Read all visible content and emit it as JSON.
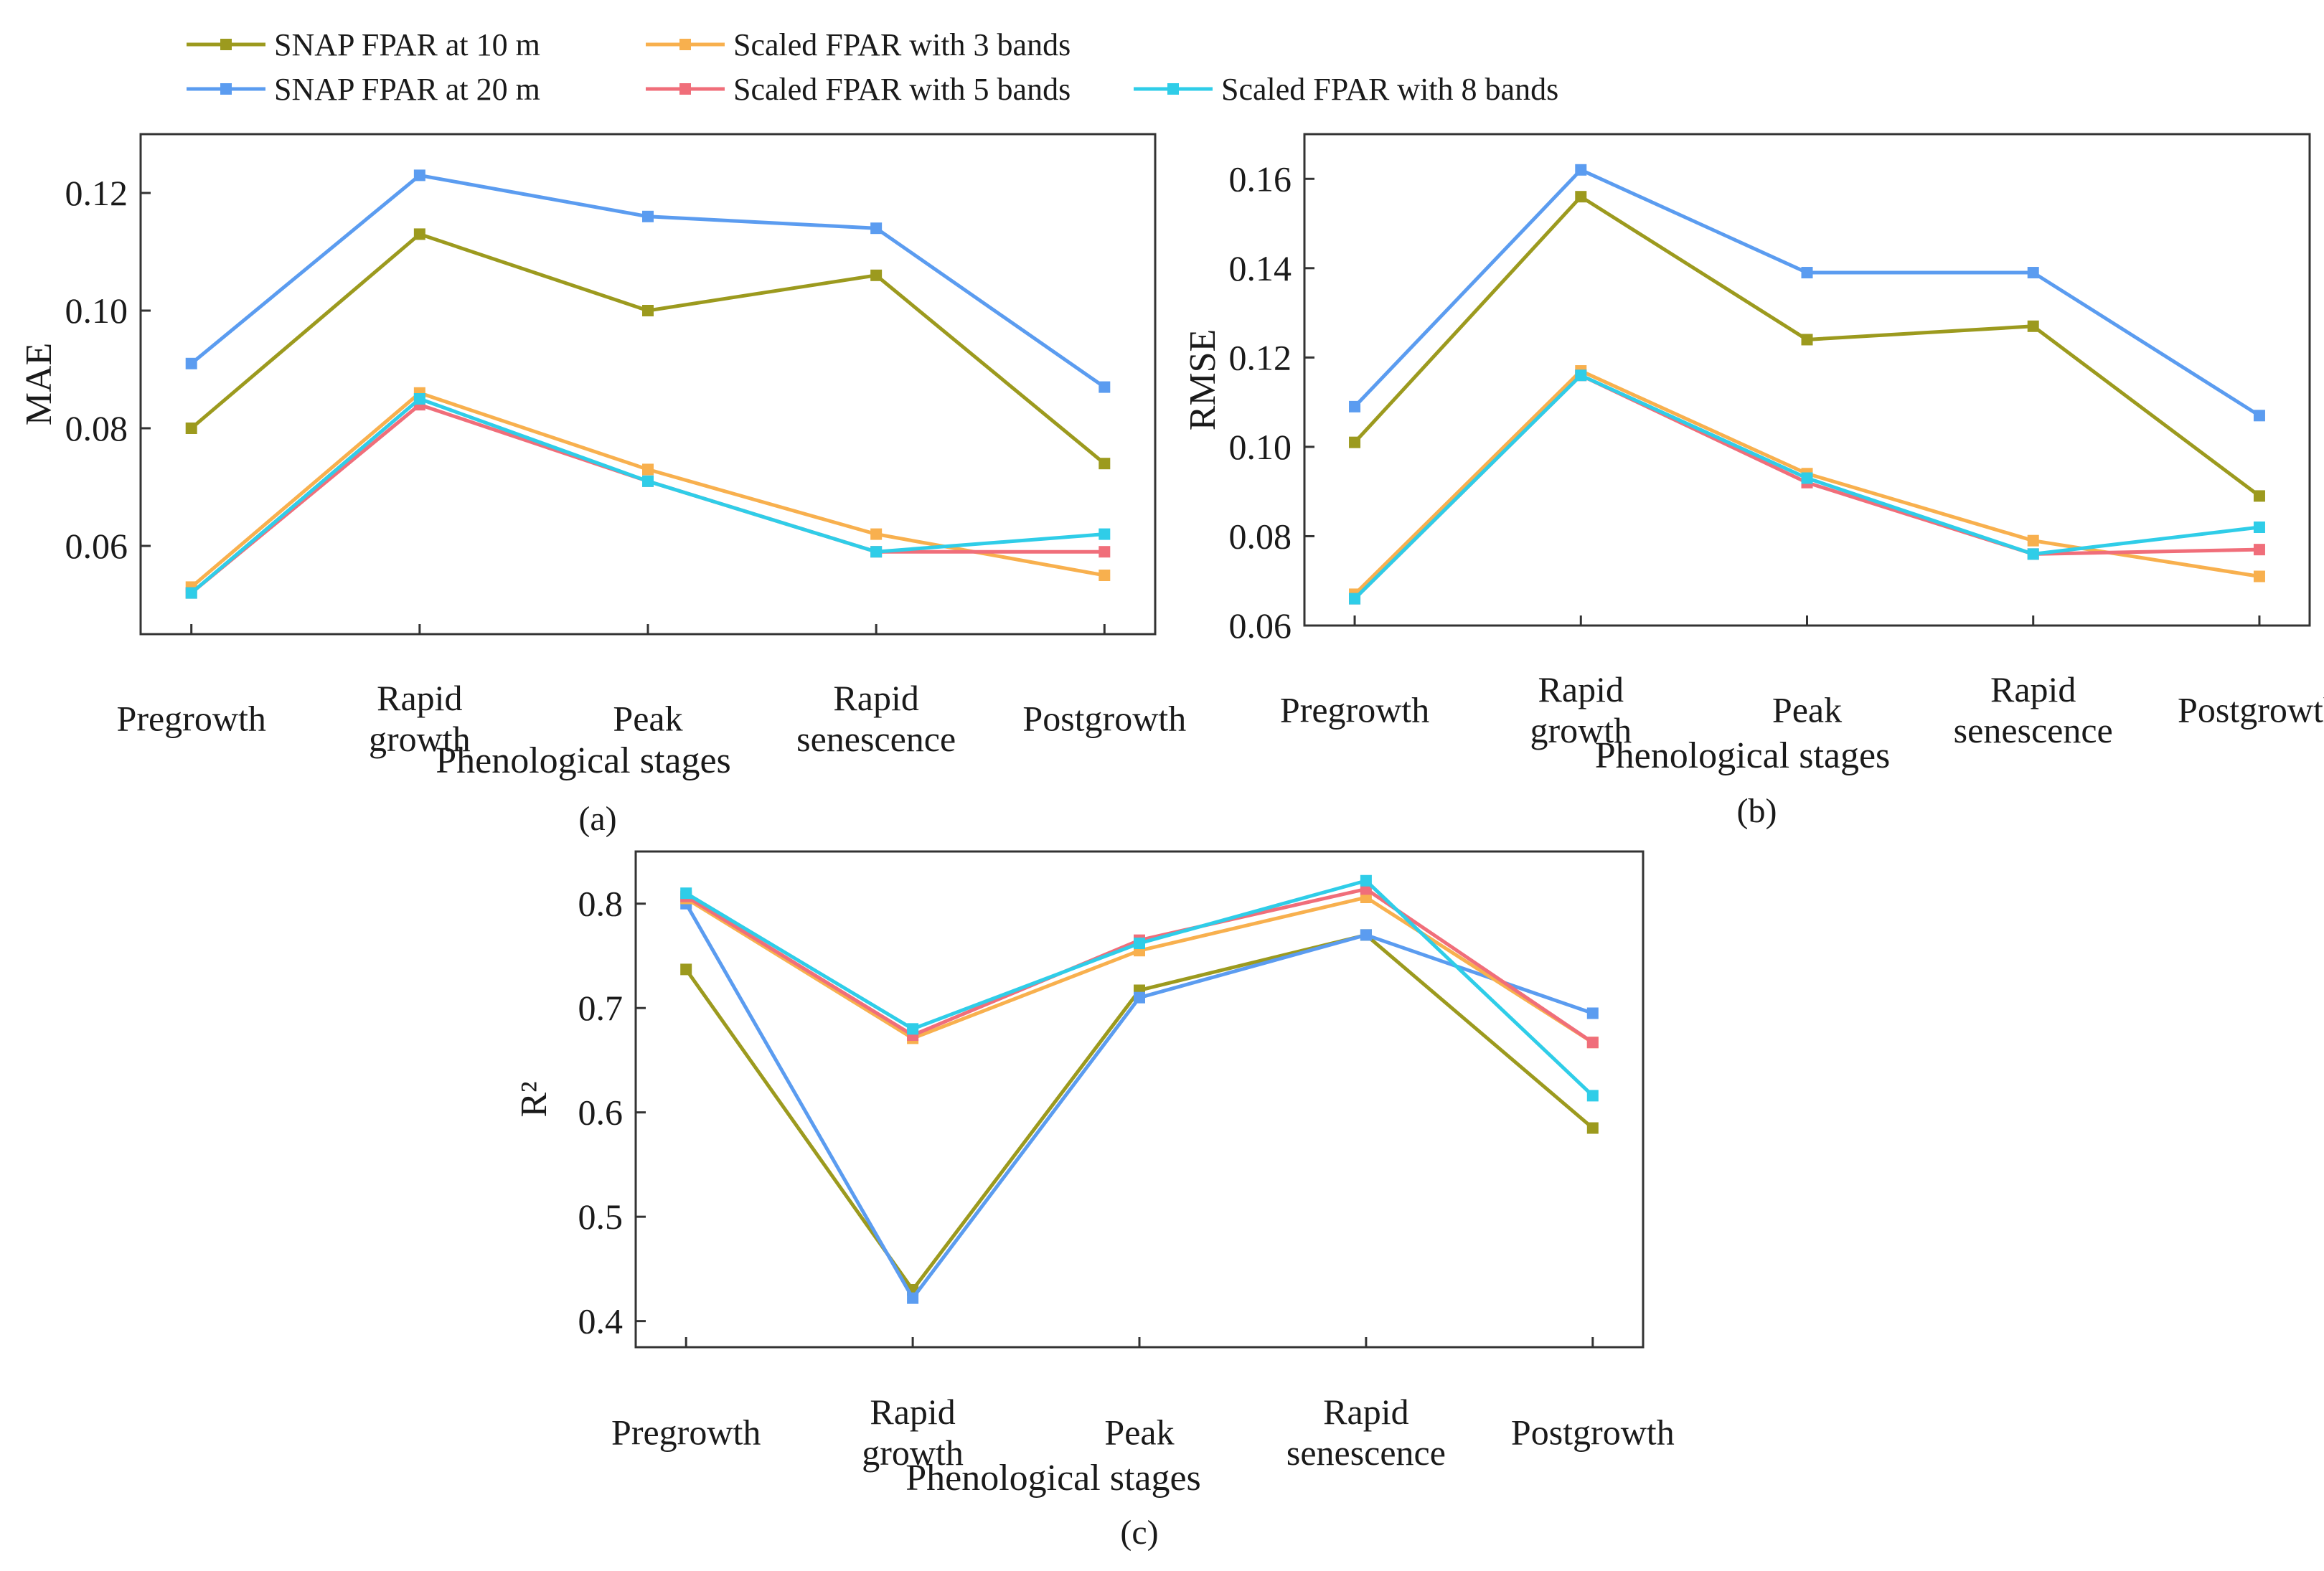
{
  "legend": {
    "items": [
      {
        "name": "SNAP FPAR at 10 m",
        "color": "#9c9a1e"
      },
      {
        "name": "Scaled FPAR with 3 bands",
        "color": "#f8b04e"
      },
      {
        "name": "SNAP FPAR at 20 m",
        "color": "#5b9cf0"
      },
      {
        "name": "Scaled FPAR with 5 bands",
        "color": "#f06e7a"
      },
      {
        "name": "Scaled FPAR with 8 bands",
        "color": "#2fcde8"
      }
    ]
  },
  "chart_data": [
    {
      "type": "line",
      "panel_label": "(a)",
      "ylabel": "MAE",
      "xlabel": "Phenological stages",
      "categories": [
        "Pregrowth",
        "Rapid growth",
        "Peak",
        "Rapid senescence",
        "Postgrowth"
      ],
      "category_lines": [
        [
          "Pregrowth"
        ],
        [
          "Rapid",
          "growth"
        ],
        [
          "Peak"
        ],
        [
          "Rapid",
          "senescence"
        ],
        [
          "Postgrowth"
        ]
      ],
      "ylim": [
        0.045,
        0.13
      ],
      "yticks": [
        0.06,
        0.08,
        0.1,
        0.12
      ],
      "ytick_labels": [
        "0.06",
        "0.08",
        "0.10",
        "0.12"
      ],
      "series": [
        {
          "name": "SNAP FPAR at 10 m",
          "values": [
            0.08,
            0.113,
            0.1,
            0.106,
            0.074
          ]
        },
        {
          "name": "SNAP FPAR at 20 m",
          "values": [
            0.091,
            0.123,
            0.116,
            0.114,
            0.087
          ]
        },
        {
          "name": "Scaled FPAR with 3 bands",
          "values": [
            0.053,
            0.086,
            0.073,
            0.062,
            0.055
          ]
        },
        {
          "name": "Scaled FPAR with 5 bands",
          "values": [
            0.052,
            0.084,
            0.071,
            0.059,
            0.059
          ]
        },
        {
          "name": "Scaled FPAR with 8 bands",
          "values": [
            0.052,
            0.085,
            0.071,
            0.059,
            0.062
          ]
        }
      ]
    },
    {
      "type": "line",
      "panel_label": "(b)",
      "ylabel": "RMSE",
      "xlabel": "Phenological stages",
      "categories": [
        "Pregrowth",
        "Rapid growth",
        "Peak",
        "Rapid senescence",
        "Postgrowth"
      ],
      "category_lines": [
        [
          "Pregrowth"
        ],
        [
          "Rapid",
          "growth"
        ],
        [
          "Peak"
        ],
        [
          "Rapid",
          "senescence"
        ],
        [
          "Postgrowth"
        ]
      ],
      "ylim": [
        0.06,
        0.17
      ],
      "yticks": [
        0.06,
        0.08,
        0.1,
        0.12,
        0.14,
        0.16
      ],
      "ytick_labels": [
        "0.06",
        "0.08",
        "0.10",
        "0.12",
        "0.14",
        "0.16"
      ],
      "series": [
        {
          "name": "SNAP FPAR at 10 m",
          "values": [
            0.101,
            0.156,
            0.124,
            0.127,
            0.089
          ]
        },
        {
          "name": "SNAP FPAR at 20 m",
          "values": [
            0.109,
            0.162,
            0.139,
            0.139,
            0.107
          ]
        },
        {
          "name": "Scaled FPAR with 3 bands",
          "values": [
            0.067,
            0.117,
            0.094,
            0.079,
            0.071
          ]
        },
        {
          "name": "Scaled FPAR with 5 bands",
          "values": [
            0.066,
            0.116,
            0.092,
            0.076,
            0.077
          ]
        },
        {
          "name": "Scaled FPAR with 8 bands",
          "values": [
            0.066,
            0.116,
            0.093,
            0.076,
            0.082
          ]
        }
      ]
    },
    {
      "type": "line",
      "panel_label": "(c)",
      "ylabel": "R²",
      "xlabel": "Phenological stages",
      "categories": [
        "Pregrowth",
        "Rapid growth",
        "Peak",
        "Rapid senescence",
        "Postgrowth"
      ],
      "category_lines": [
        [
          "Pregrowth"
        ],
        [
          "Rapid",
          "growth"
        ],
        [
          "Peak"
        ],
        [
          "Rapid",
          "senescence"
        ],
        [
          "Postgrowth"
        ]
      ],
      "ylim": [
        0.375,
        0.85
      ],
      "yticks": [
        0.4,
        0.5,
        0.6,
        0.7,
        0.8
      ],
      "ytick_labels": [
        "0.4",
        "0.5",
        "0.6",
        "0.7",
        "0.8"
      ],
      "series": [
        {
          "name": "SNAP FPAR at 10 m",
          "values": [
            0.737,
            0.43,
            0.717,
            0.77,
            0.585
          ]
        },
        {
          "name": "SNAP FPAR at 20 m",
          "values": [
            0.8,
            0.422,
            0.71,
            0.77,
            0.695
          ]
        },
        {
          "name": "Scaled FPAR with 3 bands",
          "values": [
            0.805,
            0.671,
            0.755,
            0.806,
            0.667
          ]
        },
        {
          "name": "Scaled FPAR with 5 bands",
          "values": [
            0.807,
            0.674,
            0.765,
            0.814,
            0.667
          ]
        },
        {
          "name": "Scaled FPAR with 8 bands",
          "values": [
            0.81,
            0.68,
            0.762,
            0.822,
            0.616
          ]
        }
      ]
    }
  ]
}
